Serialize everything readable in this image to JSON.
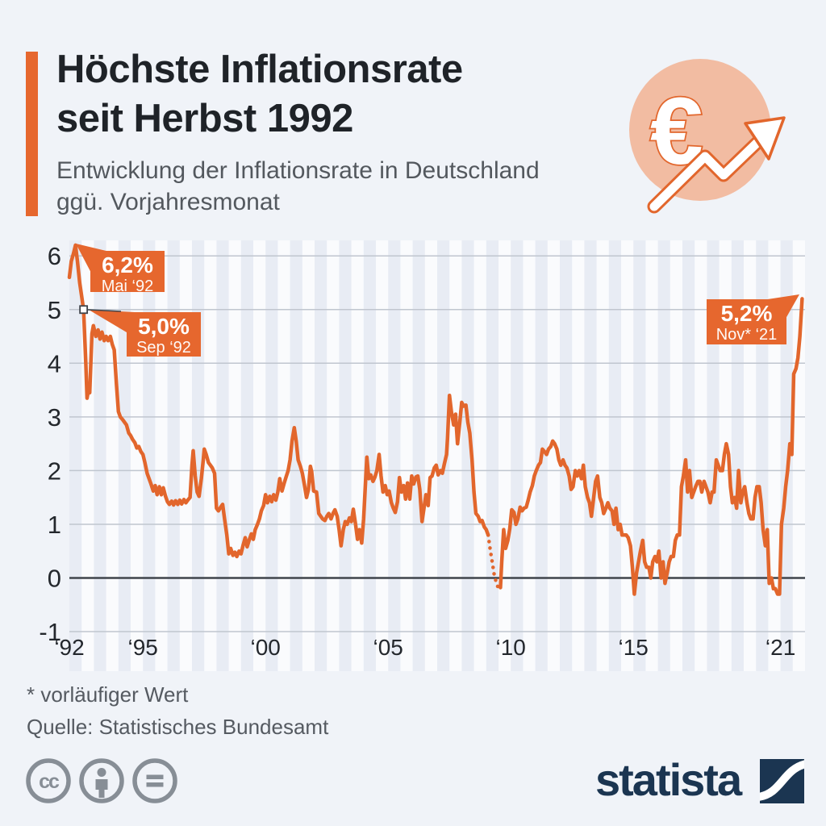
{
  "header": {
    "title_line1": "Höchste Inflationsrate",
    "title_line2": "seit Herbst 1992",
    "subtitle_line1": "Entwicklung der Inflationsrate in Deutschland",
    "subtitle_line2": "ggü. Vorjahresmonat"
  },
  "icon": {
    "name": "euro-trend-icon",
    "euro_symbol": "€",
    "circle_color": "#F2BCA2",
    "outline_color": "#E2662C"
  },
  "chart_data": {
    "type": "line",
    "title": "Entwicklung der Inflationsrate in Deutschland ggü. Vorjahresmonat",
    "xlabel": "",
    "ylabel": "%",
    "ylim": [
      -1,
      6.3
    ],
    "grid": "horizontal",
    "line_color": "#E2662C",
    "y_ticks": [
      6,
      5,
      4,
      3,
      2,
      1,
      0,
      -1
    ],
    "x_ticks": [
      {
        "label": "‘92",
        "year": 1992
      },
      {
        "label": "‘95",
        "year": 1995
      },
      {
        "label": "‘00",
        "year": 2000
      },
      {
        "label": "‘05",
        "year": 2005
      },
      {
        "label": "‘10",
        "year": 2010
      },
      {
        "label": "‘15",
        "year": 2015
      },
      {
        "label": "‘21",
        "year": 2021
      }
    ],
    "dotted_segment": [
      2009.08,
      2009.58
    ],
    "annotations": [
      {
        "value": "6,2%",
        "date": "Mai ‘92",
        "anchor_year": 1992.25,
        "anchor_value": 6.2
      },
      {
        "value": "5,0%",
        "date": "Sep ‘92",
        "anchor_year": 1992.58,
        "anchor_value": 5.0,
        "marker": true
      },
      {
        "value": "5,2%",
        "date": "Nov* ‘21",
        "anchor_year": 2021.88,
        "anchor_value": 5.2
      }
    ],
    "points": [
      [
        1992.0,
        5.6
      ],
      [
        1992.08,
        5.9
      ],
      [
        1992.17,
        6.05
      ],
      [
        1992.25,
        6.2
      ],
      [
        1992.33,
        5.9
      ],
      [
        1992.42,
        5.5
      ],
      [
        1992.5,
        5.25
      ],
      [
        1992.58,
        5.0
      ],
      [
        1992.67,
        4.0
      ],
      [
        1992.72,
        3.35
      ],
      [
        1992.78,
        3.5
      ],
      [
        1992.83,
        3.45
      ],
      [
        1992.92,
        4.55
      ],
      [
        1992.98,
        4.7
      ],
      [
        1993.08,
        4.5
      ],
      [
        1993.17,
        4.62
      ],
      [
        1993.25,
        4.45
      ],
      [
        1993.33,
        4.58
      ],
      [
        1993.42,
        4.42
      ],
      [
        1993.5,
        4.5
      ],
      [
        1993.58,
        4.42
      ],
      [
        1993.67,
        4.5
      ],
      [
        1993.75,
        4.35
      ],
      [
        1993.83,
        4.25
      ],
      [
        1993.92,
        3.6
      ],
      [
        1994.0,
        3.1
      ],
      [
        1994.08,
        3.0
      ],
      [
        1994.17,
        2.95
      ],
      [
        1994.25,
        2.9
      ],
      [
        1994.33,
        2.85
      ],
      [
        1994.42,
        2.7
      ],
      [
        1994.5,
        2.65
      ],
      [
        1994.58,
        2.58
      ],
      [
        1994.67,
        2.52
      ],
      [
        1994.75,
        2.42
      ],
      [
        1994.83,
        2.45
      ],
      [
        1994.92,
        2.35
      ],
      [
        1995.0,
        2.3
      ],
      [
        1995.08,
        2.15
      ],
      [
        1995.17,
        1.95
      ],
      [
        1995.25,
        1.85
      ],
      [
        1995.33,
        1.75
      ],
      [
        1995.42,
        1.62
      ],
      [
        1995.5,
        1.72
      ],
      [
        1995.58,
        1.55
      ],
      [
        1995.67,
        1.7
      ],
      [
        1995.75,
        1.55
      ],
      [
        1995.83,
        1.68
      ],
      [
        1995.92,
        1.52
      ],
      [
        1996.0,
        1.42
      ],
      [
        1996.08,
        1.37
      ],
      [
        1996.17,
        1.43
      ],
      [
        1996.25,
        1.36
      ],
      [
        1996.33,
        1.44
      ],
      [
        1996.42,
        1.37
      ],
      [
        1996.5,
        1.45
      ],
      [
        1996.58,
        1.38
      ],
      [
        1996.67,
        1.46
      ],
      [
        1996.75,
        1.4
      ],
      [
        1996.83,
        1.45
      ],
      [
        1996.92,
        1.5
      ],
      [
        1997.0,
        2.1
      ],
      [
        1997.05,
        2.37
      ],
      [
        1997.13,
        1.9
      ],
      [
        1997.21,
        1.6
      ],
      [
        1997.29,
        1.52
      ],
      [
        1997.38,
        1.85
      ],
      [
        1997.46,
        2.2
      ],
      [
        1997.5,
        2.4
      ],
      [
        1997.58,
        2.3
      ],
      [
        1997.67,
        2.15
      ],
      [
        1997.75,
        2.1
      ],
      [
        1997.83,
        2.05
      ],
      [
        1997.92,
        1.95
      ],
      [
        1998.0,
        1.3
      ],
      [
        1998.08,
        1.25
      ],
      [
        1998.17,
        1.32
      ],
      [
        1998.25,
        1.37
      ],
      [
        1998.33,
        1.1
      ],
      [
        1998.42,
        0.8
      ],
      [
        1998.5,
        0.45
      ],
      [
        1998.58,
        0.55
      ],
      [
        1998.67,
        0.42
      ],
      [
        1998.75,
        0.48
      ],
      [
        1998.83,
        0.4
      ],
      [
        1998.92,
        0.5
      ],
      [
        1999.0,
        0.45
      ],
      [
        1999.08,
        0.6
      ],
      [
        1999.17,
        0.75
      ],
      [
        1999.25,
        0.58
      ],
      [
        1999.33,
        0.7
      ],
      [
        1999.42,
        0.82
      ],
      [
        1999.5,
        0.72
      ],
      [
        1999.58,
        0.9
      ],
      [
        1999.67,
        1.0
      ],
      [
        1999.75,
        1.1
      ],
      [
        1999.83,
        1.25
      ],
      [
        1999.92,
        1.35
      ],
      [
        2000.0,
        1.55
      ],
      [
        2000.08,
        1.4
      ],
      [
        2000.17,
        1.52
      ],
      [
        2000.25,
        1.42
      ],
      [
        2000.33,
        1.55
      ],
      [
        2000.42,
        1.45
      ],
      [
        2000.5,
        1.6
      ],
      [
        2000.58,
        1.85
      ],
      [
        2000.67,
        1.62
      ],
      [
        2000.75,
        1.75
      ],
      [
        2000.83,
        1.87
      ],
      [
        2000.92,
        2.0
      ],
      [
        2001.0,
        2.2
      ],
      [
        2001.08,
        2.55
      ],
      [
        2001.17,
        2.8
      ],
      [
        2001.25,
        2.55
      ],
      [
        2001.33,
        2.2
      ],
      [
        2001.42,
        2.08
      ],
      [
        2001.5,
        1.95
      ],
      [
        2001.58,
        1.75
      ],
      [
        2001.67,
        1.5
      ],
      [
        2001.75,
        1.65
      ],
      [
        2001.83,
        2.08
      ],
      [
        2001.88,
        1.98
      ],
      [
        2001.96,
        1.62
      ],
      [
        2002.08,
        1.6
      ],
      [
        2002.17,
        1.2
      ],
      [
        2002.25,
        1.15
      ],
      [
        2002.33,
        1.1
      ],
      [
        2002.42,
        1.07
      ],
      [
        2002.5,
        1.15
      ],
      [
        2002.58,
        1.2
      ],
      [
        2002.67,
        1.1
      ],
      [
        2002.75,
        1.2
      ],
      [
        2002.83,
        1.27
      ],
      [
        2002.92,
        1.15
      ],
      [
        2003.0,
        0.9
      ],
      [
        2003.08,
        0.6
      ],
      [
        2003.17,
        0.9
      ],
      [
        2003.25,
        1.05
      ],
      [
        2003.33,
        1.0
      ],
      [
        2003.42,
        1.12
      ],
      [
        2003.5,
        1.05
      ],
      [
        2003.58,
        1.28
      ],
      [
        2003.67,
        1.0
      ],
      [
        2003.75,
        0.72
      ],
      [
        2003.83,
        0.9
      ],
      [
        2003.92,
        0.65
      ],
      [
        2004.0,
        1.1
      ],
      [
        2004.08,
        1.8
      ],
      [
        2004.13,
        2.25
      ],
      [
        2004.21,
        1.85
      ],
      [
        2004.29,
        1.92
      ],
      [
        2004.38,
        1.8
      ],
      [
        2004.46,
        1.88
      ],
      [
        2004.54,
        2.0
      ],
      [
        2004.63,
        2.3
      ],
      [
        2004.71,
        1.9
      ],
      [
        2004.79,
        1.6
      ],
      [
        2004.88,
        1.72
      ],
      [
        2004.96,
        1.55
      ],
      [
        2005.04,
        1.62
      ],
      [
        2005.13,
        1.4
      ],
      [
        2005.21,
        1.3
      ],
      [
        2005.29,
        1.22
      ],
      [
        2005.38,
        1.42
      ],
      [
        2005.46,
        1.87
      ],
      [
        2005.54,
        1.6
      ],
      [
        2005.63,
        1.72
      ],
      [
        2005.71,
        1.47
      ],
      [
        2005.79,
        1.77
      ],
      [
        2005.88,
        1.47
      ],
      [
        2005.96,
        1.9
      ],
      [
        2006.04,
        1.75
      ],
      [
        2006.13,
        1.88
      ],
      [
        2006.21,
        1.9
      ],
      [
        2006.29,
        1.65
      ],
      [
        2006.38,
        1.05
      ],
      [
        2006.46,
        1.3
      ],
      [
        2006.54,
        1.55
      ],
      [
        2006.63,
        1.35
      ],
      [
        2006.71,
        1.87
      ],
      [
        2006.79,
        1.9
      ],
      [
        2006.88,
        2.05
      ],
      [
        2006.96,
        2.1
      ],
      [
        2007.04,
        1.92
      ],
      [
        2007.13,
        2.0
      ],
      [
        2007.21,
        1.95
      ],
      [
        2007.29,
        2.12
      ],
      [
        2007.38,
        2.3
      ],
      [
        2007.42,
        2.6
      ],
      [
        2007.5,
        3.4
      ],
      [
        2007.58,
        3.1
      ],
      [
        2007.67,
        2.85
      ],
      [
        2007.75,
        3.05
      ],
      [
        2007.83,
        2.5
      ],
      [
        2007.92,
        2.9
      ],
      [
        2008.0,
        3.27
      ],
      [
        2008.08,
        3.2
      ],
      [
        2008.17,
        3.22
      ],
      [
        2008.25,
        2.9
      ],
      [
        2008.33,
        2.7
      ],
      [
        2008.42,
        2.2
      ],
      [
        2008.5,
        1.6
      ],
      [
        2008.58,
        1.2
      ],
      [
        2008.67,
        1.15
      ],
      [
        2008.75,
        1.05
      ],
      [
        2008.83,
        1.07
      ],
      [
        2008.92,
        0.95
      ],
      [
        2009.0,
        0.9
      ],
      [
        2009.08,
        0.8
      ],
      [
        2009.17,
        0.5
      ],
      [
        2009.25,
        0.28
      ],
      [
        2009.33,
        0.05
      ],
      [
        2009.42,
        -0.1
      ],
      [
        2009.5,
        -0.2
      ],
      [
        2009.58,
        -0.18
      ],
      [
        2009.63,
        0.3
      ],
      [
        2009.71,
        0.9
      ],
      [
        2009.79,
        0.55
      ],
      [
        2009.88,
        0.7
      ],
      [
        2009.96,
        0.92
      ],
      [
        2010.04,
        1.27
      ],
      [
        2010.13,
        1.22
      ],
      [
        2010.21,
        1.0
      ],
      [
        2010.29,
        1.1
      ],
      [
        2010.38,
        1.32
      ],
      [
        2010.46,
        1.25
      ],
      [
        2010.54,
        1.3
      ],
      [
        2010.63,
        1.32
      ],
      [
        2010.71,
        1.45
      ],
      [
        2010.79,
        1.6
      ],
      [
        2010.88,
        1.72
      ],
      [
        2010.96,
        1.9
      ],
      [
        2011.04,
        2.0
      ],
      [
        2011.13,
        2.1
      ],
      [
        2011.21,
        2.15
      ],
      [
        2011.29,
        2.4
      ],
      [
        2011.38,
        2.35
      ],
      [
        2011.46,
        2.3
      ],
      [
        2011.54,
        2.4
      ],
      [
        2011.63,
        2.45
      ],
      [
        2011.71,
        2.55
      ],
      [
        2011.79,
        2.5
      ],
      [
        2011.88,
        2.4
      ],
      [
        2011.96,
        2.2
      ],
      [
        2012.04,
        2.1
      ],
      [
        2012.13,
        2.2
      ],
      [
        2012.21,
        2.1
      ],
      [
        2012.29,
        2.05
      ],
      [
        2012.38,
        1.9
      ],
      [
        2012.46,
        1.65
      ],
      [
        2012.54,
        1.7
      ],
      [
        2012.63,
        2.0
      ],
      [
        2012.71,
        1.9
      ],
      [
        2012.79,
        2.0
      ],
      [
        2012.88,
        1.85
      ],
      [
        2012.96,
        2.1
      ],
      [
        2013.04,
        1.7
      ],
      [
        2013.13,
        1.5
      ],
      [
        2013.21,
        1.4
      ],
      [
        2013.29,
        1.15
      ],
      [
        2013.38,
        1.5
      ],
      [
        2013.46,
        1.8
      ],
      [
        2013.54,
        1.9
      ],
      [
        2013.63,
        1.5
      ],
      [
        2013.71,
        1.4
      ],
      [
        2013.79,
        1.2
      ],
      [
        2013.88,
        1.3
      ],
      [
        2013.96,
        1.4
      ],
      [
        2014.04,
        1.3
      ],
      [
        2014.13,
        1.25
      ],
      [
        2014.21,
        1.0
      ],
      [
        2014.29,
        1.3
      ],
      [
        2014.38,
        0.9
      ],
      [
        2014.46,
        1.0
      ],
      [
        2014.54,
        0.8
      ],
      [
        2014.63,
        0.8
      ],
      [
        2014.71,
        0.8
      ],
      [
        2014.79,
        0.75
      ],
      [
        2014.88,
        0.6
      ],
      [
        2014.96,
        0.2
      ],
      [
        2015.04,
        -0.3
      ],
      [
        2015.13,
        0.1
      ],
      [
        2015.21,
        0.3
      ],
      [
        2015.29,
        0.5
      ],
      [
        2015.38,
        0.7
      ],
      [
        2015.46,
        0.3
      ],
      [
        2015.54,
        0.2
      ],
      [
        2015.63,
        0.2
      ],
      [
        2015.71,
        0.0
      ],
      [
        2015.79,
        0.3
      ],
      [
        2015.88,
        0.4
      ],
      [
        2015.96,
        0.3
      ],
      [
        2016.04,
        0.5
      ],
      [
        2016.13,
        0.0
      ],
      [
        2016.21,
        0.3
      ],
      [
        2016.29,
        -0.1
      ],
      [
        2016.38,
        0.1
      ],
      [
        2016.46,
        0.3
      ],
      [
        2016.54,
        0.4
      ],
      [
        2016.63,
        0.4
      ],
      [
        2016.71,
        0.7
      ],
      [
        2016.79,
        0.8
      ],
      [
        2016.88,
        0.8
      ],
      [
        2016.96,
        1.7
      ],
      [
        2017.04,
        1.9
      ],
      [
        2017.13,
        2.2
      ],
      [
        2017.21,
        1.6
      ],
      [
        2017.29,
        2.0
      ],
      [
        2017.38,
        1.5
      ],
      [
        2017.46,
        1.6
      ],
      [
        2017.54,
        1.7
      ],
      [
        2017.63,
        1.8
      ],
      [
        2017.71,
        1.8
      ],
      [
        2017.79,
        1.6
      ],
      [
        2017.88,
        1.8
      ],
      [
        2017.96,
        1.7
      ],
      [
        2018.04,
        1.6
      ],
      [
        2018.13,
        1.4
      ],
      [
        2018.21,
        1.6
      ],
      [
        2018.29,
        1.6
      ],
      [
        2018.38,
        2.2
      ],
      [
        2018.46,
        2.1
      ],
      [
        2018.54,
        2.0
      ],
      [
        2018.63,
        2.0
      ],
      [
        2018.71,
        2.3
      ],
      [
        2018.79,
        2.5
      ],
      [
        2018.88,
        2.3
      ],
      [
        2018.96,
        1.7
      ],
      [
        2019.04,
        1.4
      ],
      [
        2019.13,
        1.5
      ],
      [
        2019.21,
        1.3
      ],
      [
        2019.29,
        2.0
      ],
      [
        2019.38,
        1.4
      ],
      [
        2019.46,
        1.6
      ],
      [
        2019.54,
        1.7
      ],
      [
        2019.63,
        1.4
      ],
      [
        2019.71,
        1.2
      ],
      [
        2019.79,
        1.1
      ],
      [
        2019.88,
        1.1
      ],
      [
        2019.96,
        1.5
      ],
      [
        2020.04,
        1.7
      ],
      [
        2020.13,
        1.7
      ],
      [
        2020.21,
        1.4
      ],
      [
        2020.29,
        0.9
      ],
      [
        2020.38,
        0.6
      ],
      [
        2020.46,
        0.9
      ],
      [
        2020.54,
        -0.1
      ],
      [
        2020.63,
        0.0
      ],
      [
        2020.71,
        -0.2
      ],
      [
        2020.79,
        -0.2
      ],
      [
        2020.88,
        -0.3
      ],
      [
        2020.96,
        -0.3
      ],
      [
        2021.04,
        1.0
      ],
      [
        2021.13,
        1.3
      ],
      [
        2021.21,
        1.7
      ],
      [
        2021.29,
        2.0
      ],
      [
        2021.38,
        2.5
      ],
      [
        2021.46,
        2.3
      ],
      [
        2021.54,
        3.8
      ],
      [
        2021.63,
        3.9
      ],
      [
        2021.71,
        4.1
      ],
      [
        2021.79,
        4.5
      ],
      [
        2021.88,
        5.2
      ]
    ]
  },
  "footer": {
    "note": "* vorläufiger Wert",
    "source": "Quelle: Statistisches Bundesamt"
  },
  "branding": {
    "logo_text": "statista",
    "logo_color": "#1B3551",
    "license_icons": [
      "cc",
      "by",
      "nd"
    ]
  },
  "colors": {
    "accent_orange": "#E6672E",
    "background": "#F0F3F8",
    "stripe": "#E8ECF4",
    "title_text": "#1F2328",
    "muted_text": "#53585E"
  }
}
